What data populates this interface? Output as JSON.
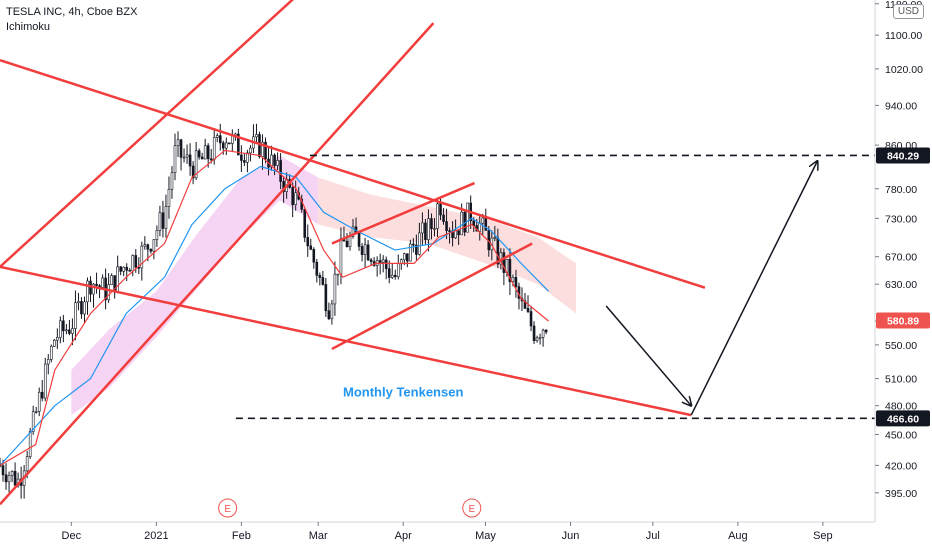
{
  "header": {
    "symbol": "TESLA INC, 4h, Cboe BZX",
    "indicator": "Ichimoku",
    "currency": "USD"
  },
  "colors": {
    "trendline": "#f23d3d",
    "tenkan": "#f23d3d",
    "kijun": "#2196f3",
    "price_tag": "#ef5350",
    "cloud_bull": "#f3c6ef",
    "cloud_bear": "#fbd3d3",
    "candle": "#131722",
    "tenkensen_text": "#2196f3"
  },
  "chart_data": {
    "type": "candlestick",
    "title": "TESLA INC, 4h, Cboe BZX",
    "y_axis": {
      "scale": "log",
      "ylim": [
        370,
        1190
      ],
      "ticks": [
        395,
        420,
        450,
        480,
        510,
        550,
        580,
        630,
        670,
        730,
        780,
        860,
        940,
        1020,
        1100,
        1180
      ],
      "tick_labels": [
        "395.00",
        "420.00",
        "450.00",
        "480.00",
        "510.00",
        "550.00",
        "580.00",
        "630.00",
        "670.00",
        "730.00",
        "780.00",
        "860.00",
        "940.00",
        "1020.00",
        "1100.00",
        "1180.00"
      ]
    },
    "x_axis": {
      "xlim": [
        "2020-11-05",
        "2021-09-20"
      ],
      "ticks": [
        {
          "label": "Dec",
          "date": "2020-12-01"
        },
        {
          "label": "2021",
          "date": "2021-01-01"
        },
        {
          "label": "Feb",
          "date": "2021-02-01"
        },
        {
          "label": "Mar",
          "date": "2021-03-01"
        },
        {
          "label": "Apr",
          "date": "2021-04-01"
        },
        {
          "label": "May",
          "date": "2021-05-01"
        },
        {
          "label": "Jun",
          "date": "2021-06-01"
        },
        {
          "label": "Jul",
          "date": "2021-07-01"
        },
        {
          "label": "Aug",
          "date": "2021-08-01"
        },
        {
          "label": "Sep",
          "date": "2021-09-01"
        }
      ]
    },
    "price_series": [
      [
        "2020-11-05",
        420
      ],
      [
        "2020-11-12",
        405
      ],
      [
        "2020-11-18",
        470
      ],
      [
        "2020-11-25",
        560
      ],
      [
        "2020-12-01",
        575
      ],
      [
        "2020-12-08",
        635
      ],
      [
        "2020-12-14",
        620
      ],
      [
        "2020-12-21",
        660
      ],
      [
        "2020-12-28",
        680
      ],
      [
        "2021-01-04",
        735
      ],
      [
        "2021-01-08",
        850
      ],
      [
        "2021-01-14",
        820
      ],
      [
        "2021-01-20",
        840
      ],
      [
        "2021-01-26",
        880
      ],
      [
        "2021-02-01",
        850
      ],
      [
        "2021-02-08",
        860
      ],
      [
        "2021-02-14",
        810
      ],
      [
        "2021-02-21",
        760
      ],
      [
        "2021-02-26",
        680
      ],
      [
        "2021-03-03",
        620
      ],
      [
        "2021-03-05",
        600
      ],
      [
        "2021-03-10",
        690
      ],
      [
        "2021-03-15",
        700
      ],
      [
        "2021-03-22",
        670
      ],
      [
        "2021-03-29",
        640
      ],
      [
        "2021-04-05",
        690
      ],
      [
        "2021-04-12",
        720
      ],
      [
        "2021-04-14",
        760
      ],
      [
        "2021-04-19",
        710
      ],
      [
        "2021-04-26",
        740
      ],
      [
        "2021-05-03",
        690
      ],
      [
        "2021-05-10",
        640
      ],
      [
        "2021-05-14",
        600
      ],
      [
        "2021-05-19",
        565
      ],
      [
        "2021-05-24",
        580
      ]
    ],
    "tenkan_sen": [
      [
        "2020-11-05",
        420
      ],
      [
        "2020-11-18",
        440
      ],
      [
        "2020-11-25",
        520
      ],
      [
        "2020-12-08",
        590
      ],
      [
        "2020-12-21",
        640
      ],
      [
        "2021-01-04",
        690
      ],
      [
        "2021-01-14",
        800
      ],
      [
        "2021-01-26",
        850
      ],
      [
        "2021-02-08",
        840
      ],
      [
        "2021-02-21",
        780
      ],
      [
        "2021-03-03",
        680
      ],
      [
        "2021-03-10",
        640
      ],
      [
        "2021-03-22",
        660
      ],
      [
        "2021-04-05",
        660
      ],
      [
        "2021-04-14",
        700
      ],
      [
        "2021-04-26",
        720
      ],
      [
        "2021-05-03",
        690
      ],
      [
        "2021-05-14",
        610
      ],
      [
        "2021-05-24",
        580
      ]
    ],
    "kijun_sen": [
      [
        "2020-11-05",
        420
      ],
      [
        "2020-11-25",
        480
      ],
      [
        "2020-12-08",
        510
      ],
      [
        "2020-12-21",
        590
      ],
      [
        "2021-01-04",
        640
      ],
      [
        "2021-01-14",
        720
      ],
      [
        "2021-01-26",
        780
      ],
      [
        "2021-02-08",
        820
      ],
      [
        "2021-02-21",
        800
      ],
      [
        "2021-03-03",
        740
      ],
      [
        "2021-03-15",
        710
      ],
      [
        "2021-03-29",
        680
      ],
      [
        "2021-04-12",
        690
      ],
      [
        "2021-04-26",
        730
      ],
      [
        "2021-05-03",
        710
      ],
      [
        "2021-05-14",
        660
      ],
      [
        "2021-05-24",
        620
      ]
    ],
    "cloud_bull": [
      [
        "2020-12-01",
        470,
        520
      ],
      [
        "2020-12-15",
        500,
        570
      ],
      [
        "2021-01-01",
        560,
        620
      ],
      [
        "2021-01-15",
        620,
        700
      ],
      [
        "2021-02-01",
        700,
        800
      ],
      [
        "2021-02-15",
        760,
        840
      ],
      [
        "2021-03-01",
        720,
        800
      ]
    ],
    "cloud_bear": [
      [
        "2021-03-01",
        720,
        800
      ],
      [
        "2021-03-20",
        700,
        770
      ],
      [
        "2021-04-10",
        690,
        750
      ],
      [
        "2021-05-01",
        660,
        730
      ],
      [
        "2021-05-20",
        630,
        700
      ],
      [
        "2021-06-03",
        590,
        660
      ]
    ],
    "trendlines": [
      {
        "from": [
          "2020-11-05",
          1040
        ],
        "to": [
          "2021-07-20",
          625
        ]
      },
      {
        "from": [
          "2020-11-05",
          655
        ],
        "to": [
          "2021-07-15",
          470
        ]
      },
      {
        "from": [
          "2020-11-05",
          655
        ],
        "to": [
          "2021-02-21",
          1200
        ]
      },
      {
        "from": [
          "2020-11-05",
          385
        ],
        "to": [
          "2021-04-12",
          1130
        ]
      },
      {
        "from": [
          "2021-03-06",
          690
        ],
        "to": [
          "2021-04-27",
          790
        ]
      },
      {
        "from": [
          "2021-03-06",
          545
        ],
        "to": [
          "2021-05-18",
          690
        ]
      }
    ],
    "horizontal_levels": [
      {
        "value": 840.29,
        "label": "840.29",
        "from": "2021-02-26",
        "to": "2021-09-20"
      },
      {
        "value": 466.6,
        "label": "466.60",
        "from": "2021-01-30",
        "to": "2021-09-20"
      }
    ],
    "last_price": {
      "value": 580.89,
      "label": "580.89"
    },
    "arrows": [
      {
        "from": [
          "2021-06-14",
          600
        ],
        "to": [
          "2021-07-15",
          480
        ]
      },
      {
        "from": [
          "2021-07-15",
          470
        ],
        "to": [
          "2021-08-30",
          830
        ]
      }
    ],
    "earnings_markers": [
      {
        "date": "2021-01-27",
        "label": "E"
      },
      {
        "date": "2021-04-26",
        "label": "E"
      }
    ],
    "annotations": [
      {
        "text": "Monthly Tenkensen",
        "at": [
          "2021-04-01",
          490
        ]
      }
    ]
  }
}
